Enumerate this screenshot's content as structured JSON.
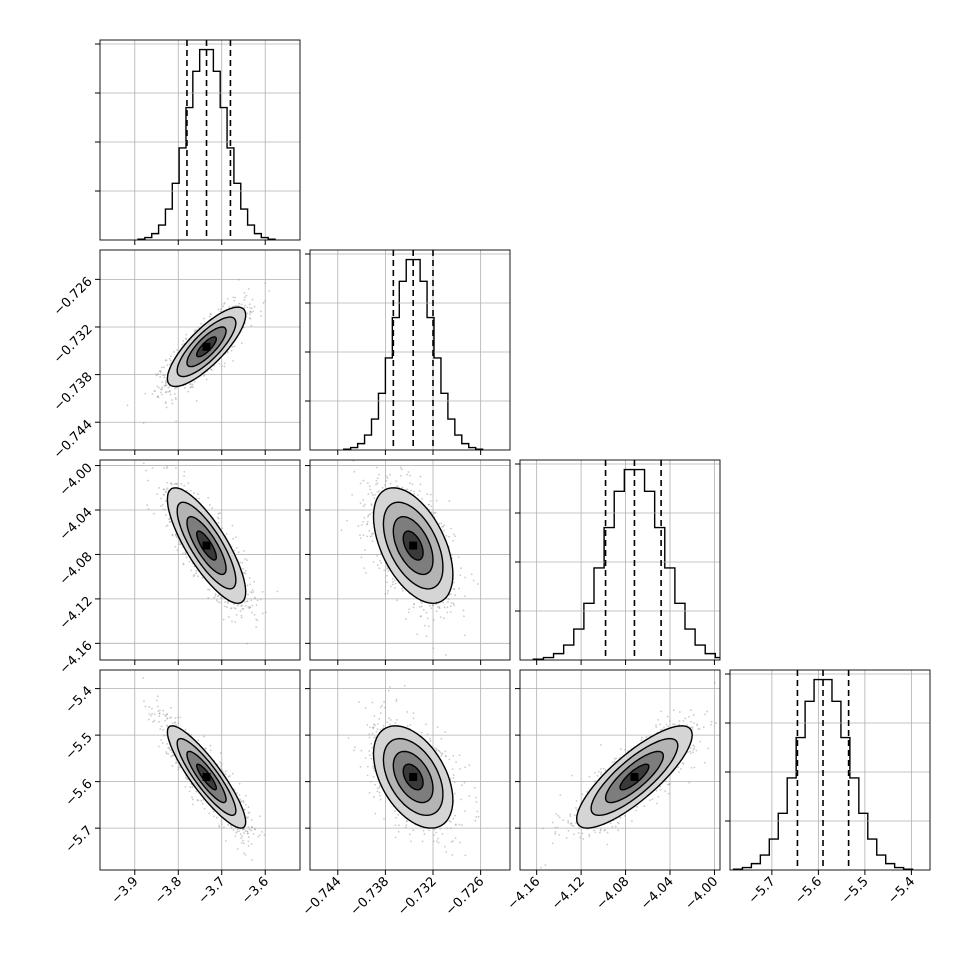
{
  "chart_data": {
    "type": "corner",
    "title": "",
    "grid": true,
    "colors": {
      "ink": "#000000",
      "grid": "#b0b0b0",
      "scatter": "#a0a0a0"
    },
    "parameters": [
      {
        "name": "",
        "range": [
          -3.98,
          -3.52
        ],
        "ticks": [
          -3.9,
          -3.8,
          -3.7,
          -3.6
        ],
        "tick_labels": [
          "−3.9",
          "−3.8",
          "−3.7",
          "−3.6"
        ],
        "mean": -3.735,
        "sd": 0.045,
        "quantiles": [
          -3.78,
          -3.735,
          -3.68
        ]
      },
      {
        "name": "",
        "range": [
          -0.7475,
          -0.7223
        ],
        "ticks": [
          -0.744,
          -0.738,
          -0.732,
          -0.726
        ],
        "tick_labels": [
          "−0.744",
          "−0.738",
          "−0.732",
          "−0.726"
        ],
        "mean": -0.7345,
        "sd": 0.0025,
        "quantiles": [
          -0.737,
          -0.7345,
          -0.732
        ]
      },
      {
        "name": "",
        "range": [
          -4.175,
          -3.995
        ],
        "ticks": [
          -4.16,
          -4.12,
          -4.08,
          -4.04,
          -4.0
        ],
        "tick_labels": [
          "−4.16",
          "−4.12",
          "−4.08",
          "−4.04",
          "−4.00"
        ],
        "mean": -4.072,
        "sd": 0.026,
        "quantiles": [
          -4.098,
          -4.072,
          -4.048
        ]
      },
      {
        "name": "",
        "range": [
          -5.79,
          -5.36
        ],
        "ticks": [
          -5.7,
          -5.6,
          -5.5,
          -5.4
        ],
        "tick_labels": [
          "−5.7",
          "−5.6",
          "−5.5",
          "−5.4"
        ],
        "mean": -5.59,
        "sd": 0.055,
        "quantiles": [
          -5.645,
          -5.59,
          -5.535
        ]
      }
    ],
    "correlations": [
      [
        1.0,
        0.8,
        -0.8,
        -0.88
      ],
      [
        0.8,
        1.0,
        -0.5,
        -0.45
      ],
      [
        -0.8,
        -0.5,
        1.0,
        0.82
      ],
      [
        -0.88,
        -0.45,
        0.82,
        1.0
      ]
    ],
    "contour_levels_sigma": [
      0.5,
      1.0,
      1.5,
      2.0
    ],
    "histogram_bins": 20
  }
}
